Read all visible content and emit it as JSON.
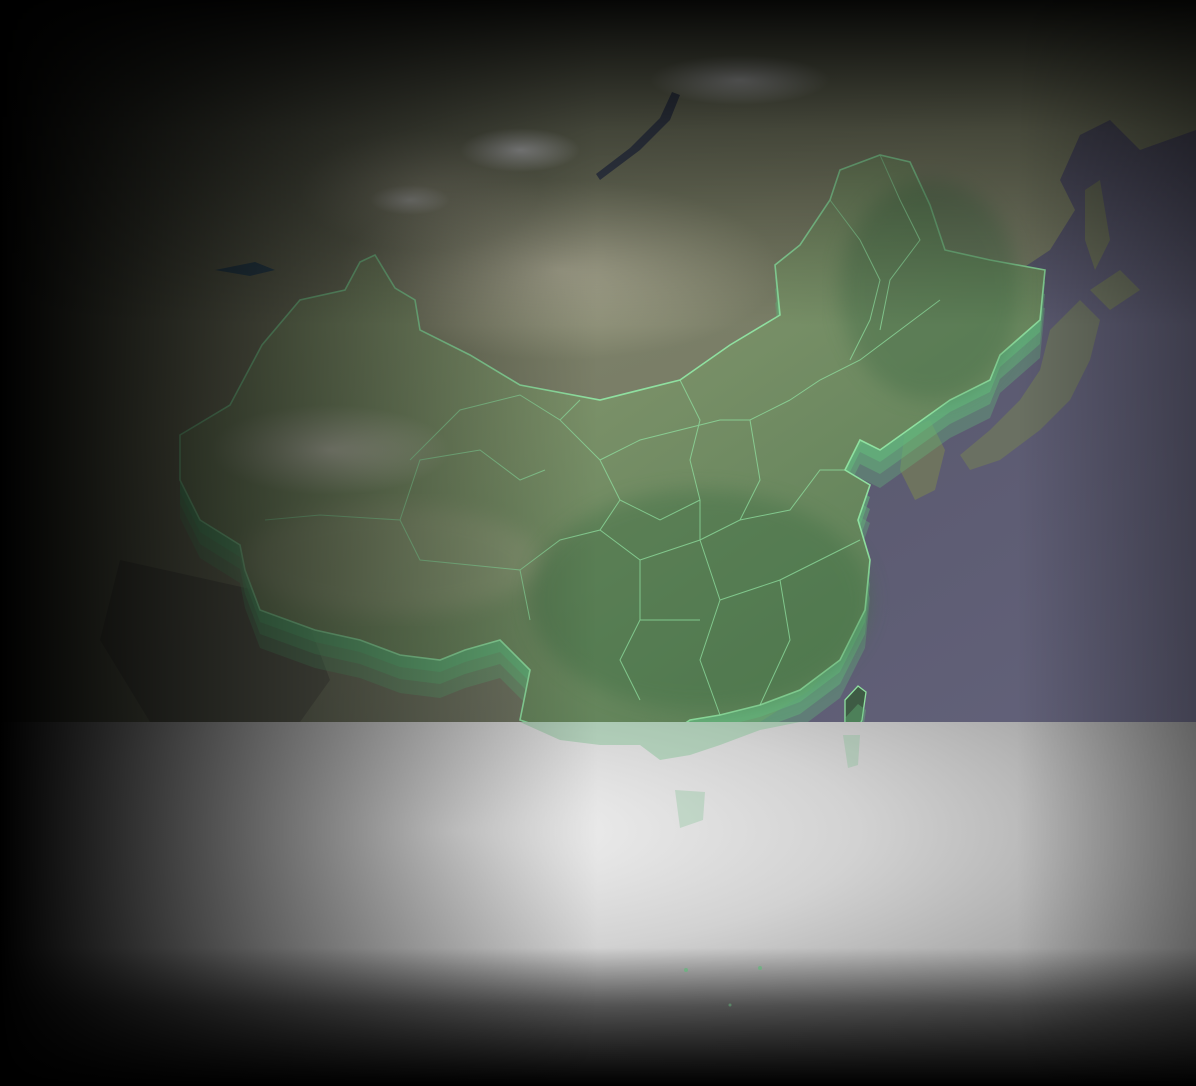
{
  "map": {
    "style": "satellite-3d",
    "region": "China",
    "province_boundaries": true,
    "extruded": true,
    "colors": {
      "highlight_fill": "#6fa873",
      "boundary": "#8fe0a0",
      "extrusion": "#5fb877",
      "ocean": "#5d5b73",
      "land": "#7f8466",
      "desert": "#a6a58b",
      "vignette": "#000000",
      "lower_band": "#d9d9d9"
    }
  }
}
